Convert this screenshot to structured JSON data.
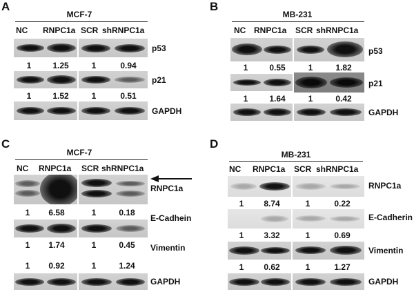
{
  "panels": {
    "A": {
      "letter": "A",
      "cell_line": "MCF-7",
      "lanes": [
        "NC",
        "RNPC1a",
        "SCR",
        "shRNPC1a"
      ],
      "rows": [
        {
          "protein": "p53",
          "values": [
            "1",
            "1.25",
            "1",
            "0.94"
          ]
        },
        {
          "protein": "p21",
          "values": [
            "1",
            "1.52",
            "1",
            "0.51"
          ]
        },
        {
          "protein": "GAPDH",
          "values": []
        }
      ]
    },
    "B": {
      "letter": "B",
      "cell_line": "MB-231",
      "lanes": [
        "NC",
        "RNPC1a",
        "SCR",
        "shRNPC1a"
      ],
      "rows": [
        {
          "protein": "p53",
          "values": [
            "1",
            "0.55",
            "1",
            "1.82"
          ]
        },
        {
          "protein": "p21",
          "values": [
            "1",
            "1.64",
            "1",
            "0.42"
          ]
        },
        {
          "protein": "GAPDH",
          "values": []
        }
      ]
    },
    "C": {
      "letter": "C",
      "cell_line": "MCF-7",
      "lanes": [
        "NC",
        "RNPC1a",
        "SCR",
        "shRNPC1a"
      ],
      "rows": [
        {
          "protein": "RNPC1a",
          "values": [
            "1",
            "6.58",
            "1",
            "0.18"
          ]
        },
        {
          "protein": "E-Cadhein",
          "values": [
            "1",
            "1.74",
            "1",
            "0.45"
          ]
        },
        {
          "protein": "Vimentin",
          "values": [
            "1",
            "0.92",
            "1",
            "1.24"
          ]
        },
        {
          "protein": "GAPDH",
          "values": []
        }
      ]
    },
    "D": {
      "letter": "D",
      "cell_line": "MB-231",
      "lanes": [
        "NC",
        "RNPC1a",
        "SCR",
        "shRNPC1a"
      ],
      "rows": [
        {
          "protein": "RNPC1a",
          "values": [
            "1",
            "8.74",
            "1",
            "0.22"
          ]
        },
        {
          "protein": "E-Cadherin",
          "values": [
            "1",
            "3.32",
            "1",
            "0.69"
          ]
        },
        {
          "protein": "Vimentin",
          "values": [
            "1",
            "0.62",
            "1",
            "1.27"
          ]
        },
        {
          "protein": "GAPDH",
          "values": []
        }
      ]
    }
  }
}
